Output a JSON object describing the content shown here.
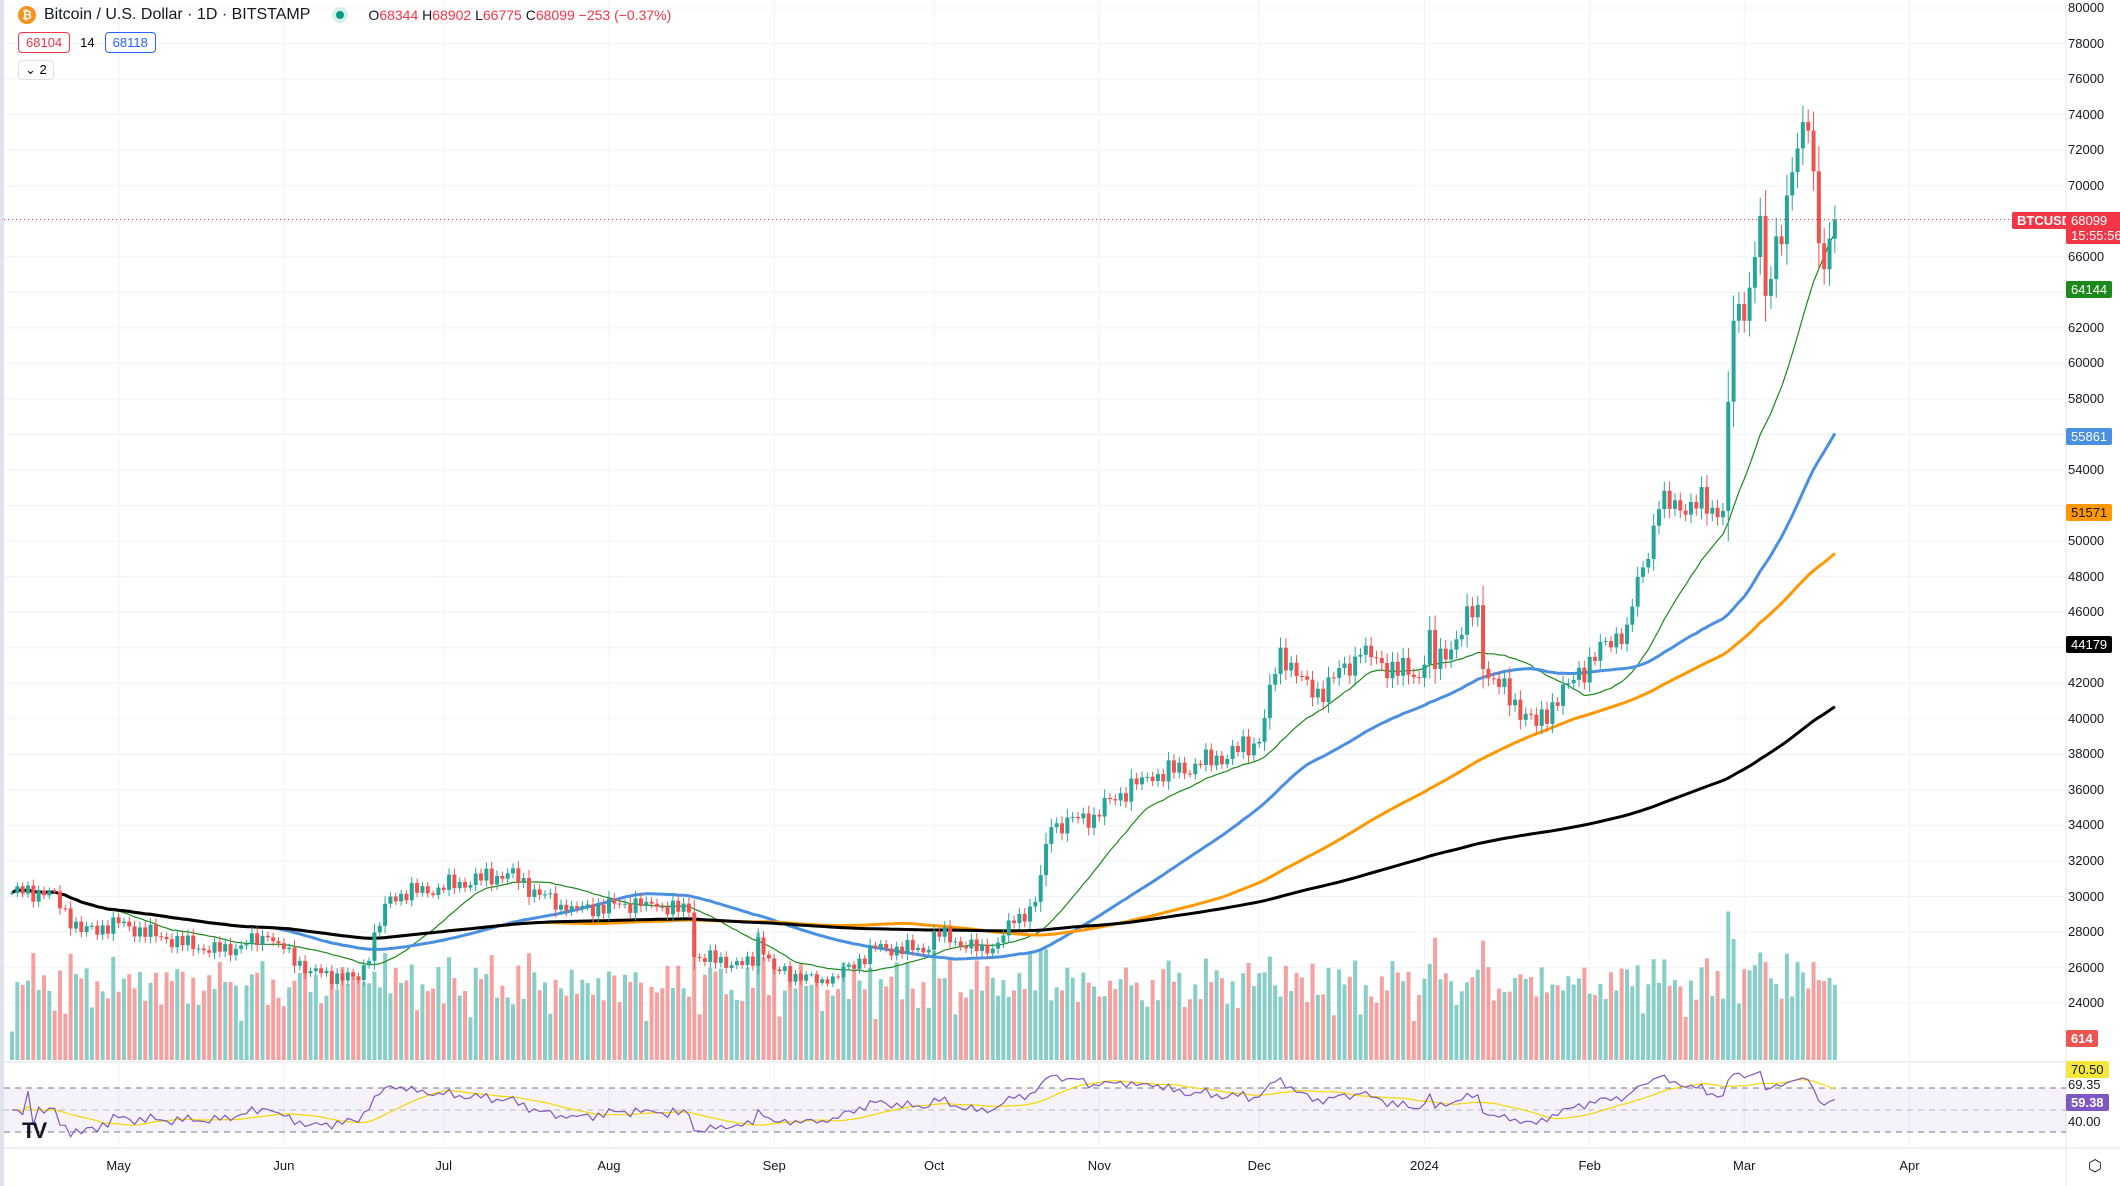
{
  "header": {
    "symbol_title": "Bitcoin / U.S. Dollar · 1D · BITSTAMP",
    "coin_icon": "bitcoin-icon",
    "open_label": "O",
    "open": "68344",
    "high_label": "H",
    "high": "68902",
    "low_label": "L",
    "low": "66775",
    "close_label": "C",
    "close": "68099",
    "change": "−253 (−0.37%)",
    "bid": "68104",
    "spread": "14",
    "ask": "68118",
    "indicators_toggle": "2"
  },
  "price_axis": {
    "labels": [
      "80000",
      "78000",
      "76000",
      "74000",
      "72000",
      "70000",
      "66000",
      "62000",
      "60000",
      "58000",
      "54000",
      "50000",
      "48000",
      "46000",
      "42000",
      "40000",
      "38000",
      "36000",
      "34000",
      "32000",
      "30000",
      "28000",
      "26000",
      "24000"
    ],
    "last_tag": "BTCUSD",
    "last_price": "68099",
    "countdown": "15:55:56",
    "ma_tags": [
      {
        "value": "64144",
        "color": "#1b8a1b",
        "period": 20
      },
      {
        "value": "55861",
        "color": "#4a90e2",
        "period": 50
      },
      {
        "value": "51571",
        "color": "#ff9800",
        "period": 100
      },
      {
        "value": "44179",
        "color": "#000000",
        "period": 200
      }
    ],
    "volume_tag": "614"
  },
  "rsi": {
    "ma_value": "70.50",
    "upper": "69.35",
    "value": "59.38",
    "lower": "40.00",
    "rsi_color": "#7e57c2",
    "ma_color": "#f5d800"
  },
  "time_axis": {
    "labels": [
      "May",
      "Jun",
      "Jul",
      "Aug",
      "Sep",
      "Oct",
      "Nov",
      "Dec",
      "2024",
      "Feb",
      "Mar",
      "Apr"
    ]
  },
  "colors": {
    "up": "#26a69a",
    "down": "#ef5350"
  },
  "chart_data": {
    "type": "candlestick",
    "interval": "1D",
    "ylim": [
      22000,
      80000
    ],
    "x_range": [
      "2023-04-11",
      "2024-03-18"
    ],
    "closes_approx": [
      [
        "2023-04-11",
        30200
      ],
      [
        "2023-04-18",
        30300
      ],
      [
        "2023-04-24",
        28000
      ],
      [
        "2023-05-01",
        28500
      ],
      [
        "2023-05-10",
        27600
      ],
      [
        "2023-05-20",
        26900
      ],
      [
        "2023-05-29",
        27700
      ],
      [
        "2023-06-06",
        25800
      ],
      [
        "2023-06-15",
        25300
      ],
      [
        "2023-06-21",
        30000
      ],
      [
        "2023-06-30",
        30500
      ],
      [
        "2023-07-13",
        31300
      ],
      [
        "2023-07-24",
        29200
      ],
      [
        "2023-08-08",
        29700
      ],
      [
        "2023-08-16",
        29100
      ],
      [
        "2023-08-17",
        26600
      ],
      [
        "2023-08-28",
        26100
      ],
      [
        "2023-08-29",
        27700
      ],
      [
        "2023-09-01",
        25900
      ],
      [
        "2023-09-11",
        25100
      ],
      [
        "2023-09-20",
        27100
      ],
      [
        "2023-09-30",
        27000
      ],
      [
        "2023-10-01",
        28000
      ],
      [
        "2023-10-11",
        26800
      ],
      [
        "2023-10-16",
        28500
      ],
      [
        "2023-10-20",
        29700
      ],
      [
        "2023-10-23",
        33900
      ],
      [
        "2023-10-31",
        34600
      ],
      [
        "2023-11-09",
        36700
      ],
      [
        "2023-11-20",
        37400
      ],
      [
        "2023-12-01",
        38700
      ],
      [
        "2023-12-05",
        44000
      ],
      [
        "2023-12-11",
        41200
      ],
      [
        "2023-12-20",
        43600
      ],
      [
        "2023-12-31",
        42300
      ],
      [
        "2024-01-02",
        45000
      ],
      [
        "2024-01-03",
        42800
      ],
      [
        "2024-01-11",
        46400
      ],
      [
        "2024-01-12",
        42800
      ],
      [
        "2024-01-22",
        39600
      ],
      [
        "2024-01-28",
        42000
      ],
      [
        "2024-02-08",
        45300
      ],
      [
        "2024-02-14",
        51800
      ],
      [
        "2024-02-20",
        52200
      ],
      [
        "2024-02-26",
        51700
      ],
      [
        "2024-02-28",
        62400
      ],
      [
        "2024-03-01",
        62400
      ],
      [
        "2024-03-04",
        68300
      ],
      [
        "2024-03-05",
        63800
      ],
      [
        "2024-03-11",
        72100
      ],
      [
        "2024-03-13",
        73100
      ],
      [
        "2024-03-16",
        65300
      ],
      [
        "2024-03-18",
        68099
      ]
    ]
  }
}
